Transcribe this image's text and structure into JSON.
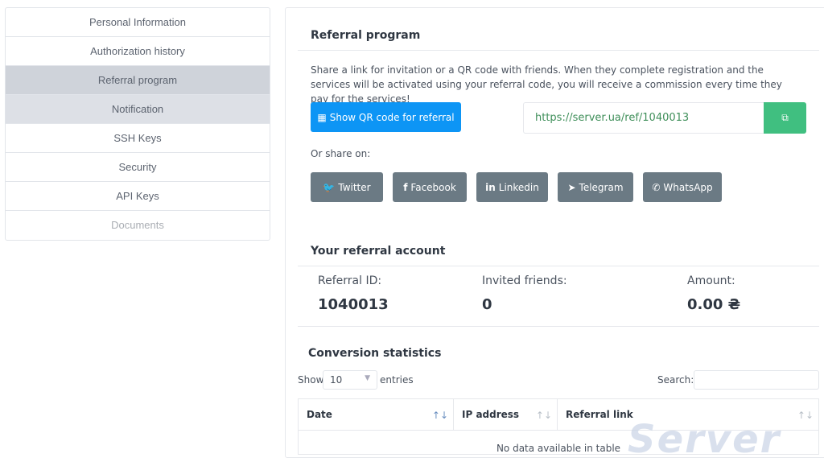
{
  "sidebar": {
    "items": [
      {
        "label": "Personal Information"
      },
      {
        "label": "Authorization history"
      },
      {
        "label": "Referral program"
      },
      {
        "label": "Notification"
      },
      {
        "label": "SSH Keys"
      },
      {
        "label": "Security"
      },
      {
        "label": "API Keys"
      },
      {
        "label": "Documents"
      }
    ]
  },
  "referral": {
    "title": "Referral program",
    "description": "Share a link for invitation or a QR code with friends. When they complete registration and the services will be activated using your referral code, you will receive a commission every time they pay for the services!",
    "qr_button": "Show QR code for referral",
    "url": "https://server.ua/ref/1040013",
    "share_label": "Or share on:",
    "share": [
      {
        "label": "Twitter",
        "icon": "twitter-icon"
      },
      {
        "label": "Facebook",
        "icon": "facebook-icon"
      },
      {
        "label": "Linkedin",
        "icon": "linkedin-icon"
      },
      {
        "label": "Telegram",
        "icon": "telegram-icon"
      },
      {
        "label": "WhatsApp",
        "icon": "whatsapp-icon"
      }
    ]
  },
  "account": {
    "title": "Your referral account",
    "id_label": "Referral ID:",
    "id": "1040013",
    "friends_label": "Invited friends:",
    "friends": "0",
    "amount_label": "Amount:",
    "amount": "0.00 ₴"
  },
  "stats": {
    "title": "Conversion statistics",
    "show": "Show",
    "page_size": "10",
    "entries": "entries",
    "search_label": "Search:",
    "columns": [
      "Date",
      "IP address",
      "Referral link"
    ],
    "empty": "No data available in table"
  },
  "watermark": "Server",
  "colors": {
    "primary": "#0d95f5",
    "copy": "#40bf80",
    "share": "#6b7a84"
  }
}
